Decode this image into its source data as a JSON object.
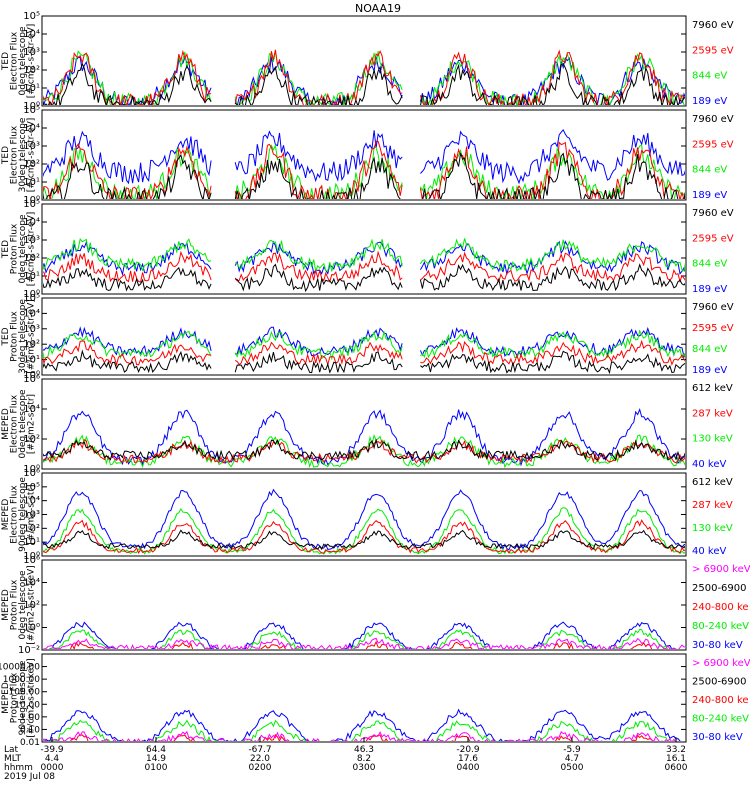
{
  "title": "NOAA19",
  "colors": {
    "black": "#000000",
    "red": "#ff0000",
    "green": "#00ee00",
    "blue": "#0000ff",
    "magenta": "#ff00ff"
  },
  "chart_data": [
    {
      "type": "line",
      "instrument": "TED",
      "ylabel": [
        "TED",
        "Electron Flux",
        "0deg telescope",
        "[#/cm2-s-str-eV]"
      ],
      "ylog": true,
      "ylim": [
        1,
        100000
      ],
      "yticks": [
        "10⁰",
        "10¹",
        "10²",
        "10³",
        "10⁴",
        "10⁵"
      ],
      "legend": [
        {
          "label": "7960 eV",
          "color": "black"
        },
        {
          "label": "2595 eV",
          "color": "red"
        },
        {
          "label": "844 eV",
          "color": "green"
        },
        {
          "label": "189 eV",
          "color": "blue"
        }
      ]
    },
    {
      "type": "line",
      "instrument": "TED",
      "ylabel": [
        "TED",
        "Electron Flux",
        "30deg telescope",
        "[#/cm2-s-str-eV]"
      ],
      "ylog": true,
      "ylim": [
        1,
        100000
      ],
      "yticks": [
        "10⁰",
        "10¹",
        "10²",
        "10³",
        "10⁴",
        "10⁵"
      ],
      "legend": [
        {
          "label": "7960 eV",
          "color": "black"
        },
        {
          "label": "2595 eV",
          "color": "red"
        },
        {
          "label": "844 eV",
          "color": "green"
        },
        {
          "label": "189 eV",
          "color": "blue"
        }
      ]
    },
    {
      "type": "line",
      "instrument": "TED",
      "ylabel": [
        "TED",
        "Proton Flux",
        "0deg telescope",
        "[#/cm2-s-str-eV]"
      ],
      "ylog": true,
      "ylim": [
        1,
        100000
      ],
      "yticks": [
        "10⁰",
        "10¹",
        "10²",
        "10³",
        "10⁴",
        "10⁵"
      ],
      "legend": [
        {
          "label": "7960 eV",
          "color": "black"
        },
        {
          "label": "2595 eV",
          "color": "red"
        },
        {
          "label": "844 eV",
          "color": "green"
        },
        {
          "label": "189 eV",
          "color": "blue"
        }
      ]
    },
    {
      "type": "line",
      "instrument": "TED",
      "ylabel": [
        "TED",
        "Proton Flux",
        "30deg telescope",
        "[#/cm2-s-str-eV]"
      ],
      "ylog": true,
      "ylim": [
        1,
        100000
      ],
      "yticks": [
        "10⁰",
        "10¹",
        "10²",
        "10³",
        "10⁴",
        "10⁵"
      ],
      "legend": [
        {
          "label": "7960 eV",
          "color": "black"
        },
        {
          "label": "2595 eV",
          "color": "red"
        },
        {
          "label": "844 eV",
          "color": "green"
        },
        {
          "label": "189 eV",
          "color": "blue"
        }
      ]
    },
    {
      "type": "line",
      "instrument": "MEPED",
      "ylabel": [
        "MEPED",
        "Electron Flux",
        "0deg telescope",
        "[#/cm2-s-str]"
      ],
      "ylog": true,
      "ylim": [
        1,
        1000000
      ],
      "yticks": [
        "10⁰",
        "10²",
        "10⁴",
        "10⁶"
      ],
      "legend": [
        {
          "label": "612 keV",
          "color": "black"
        },
        {
          "label": "287 keV",
          "color": "red"
        },
        {
          "label": "130 keV",
          "color": "green"
        },
        {
          "label": "40 keV",
          "color": "blue"
        }
      ]
    },
    {
      "type": "line",
      "instrument": "MEPED",
      "ylabel": [
        "MEPED",
        "Electron Flux",
        "90deg telescope",
        "[#/cm2-s-str]"
      ],
      "ylog": true,
      "ylim": [
        1,
        1000000
      ],
      "yticks": [
        "10⁰",
        "10¹",
        "10²",
        "10³",
        "10⁴",
        "10⁵",
        "10⁶"
      ],
      "legend": [
        {
          "label": "612 keV",
          "color": "black"
        },
        {
          "label": "287 keV",
          "color": "red"
        },
        {
          "label": "130 keV",
          "color": "green"
        },
        {
          "label": "40 keV",
          "color": "blue"
        }
      ]
    },
    {
      "type": "line",
      "instrument": "MEPED",
      "ylabel": [
        "MEPED",
        "Proton Flux",
        "0deg telescope",
        "[#/cm2-s-str-keV]"
      ],
      "ylog": true,
      "ylim": [
        0.01,
        1000000
      ],
      "yticks": [
        "10⁻²",
        "10⁰",
        "10²",
        "10⁴",
        "10⁶"
      ],
      "legend": [
        {
          "label": "> 6900 keV",
          "color": "magenta"
        },
        {
          "label": "2500-6900",
          "color": "black"
        },
        {
          "label": "240-800 ke",
          "color": "red"
        },
        {
          "label": "80-240 keV",
          "color": "green"
        },
        {
          "label": "30-80 keV",
          "color": "blue"
        }
      ]
    },
    {
      "type": "line",
      "instrument": "MEPED",
      "ylabel": [
        "MEPED",
        "Proton Flux",
        "90deg telescope",
        "[#/cm2-s-str-keV]"
      ],
      "ylog": true,
      "ylim": [
        0.01,
        100000
      ],
      "yticks": [
        "0.01",
        "0.10",
        "1.00",
        "10.00",
        "100.00",
        "1000.00",
        "10000.00"
      ],
      "ytick_values": [
        0.01,
        0.1,
        1,
        10,
        100,
        1000,
        10000
      ],
      "legend": [
        {
          "label": "> 6900 keV",
          "color": "magenta"
        },
        {
          "label": "2500-6900",
          "color": "black"
        },
        {
          "label": "240-800 ke",
          "color": "red"
        },
        {
          "label": "80-240 keV",
          "color": "green"
        },
        {
          "label": "30-80 keV",
          "color": "blue"
        }
      ]
    }
  ],
  "xaxis": {
    "row_labels": [
      "Lat",
      "MLT",
      "hhmm"
    ],
    "columns": [
      {
        "lat": "-39.9",
        "mlt": "4.4",
        "hhmm": "0000"
      },
      {
        "lat": "64.4",
        "mlt": "14.9",
        "hhmm": "0100"
      },
      {
        "lat": "-67.7",
        "mlt": "22.0",
        "hhmm": "0200"
      },
      {
        "lat": "46.3",
        "mlt": "8.2",
        "hhmm": "0300"
      },
      {
        "lat": "-20.9",
        "mlt": "17.6",
        "hhmm": "0400"
      },
      {
        "lat": "-5.9",
        "mlt": "4.7",
        "hhmm": "0500"
      },
      {
        "lat": "33.2",
        "mlt": "16.1",
        "hhmm": "0600"
      }
    ],
    "date": "2019 Jul 08"
  }
}
